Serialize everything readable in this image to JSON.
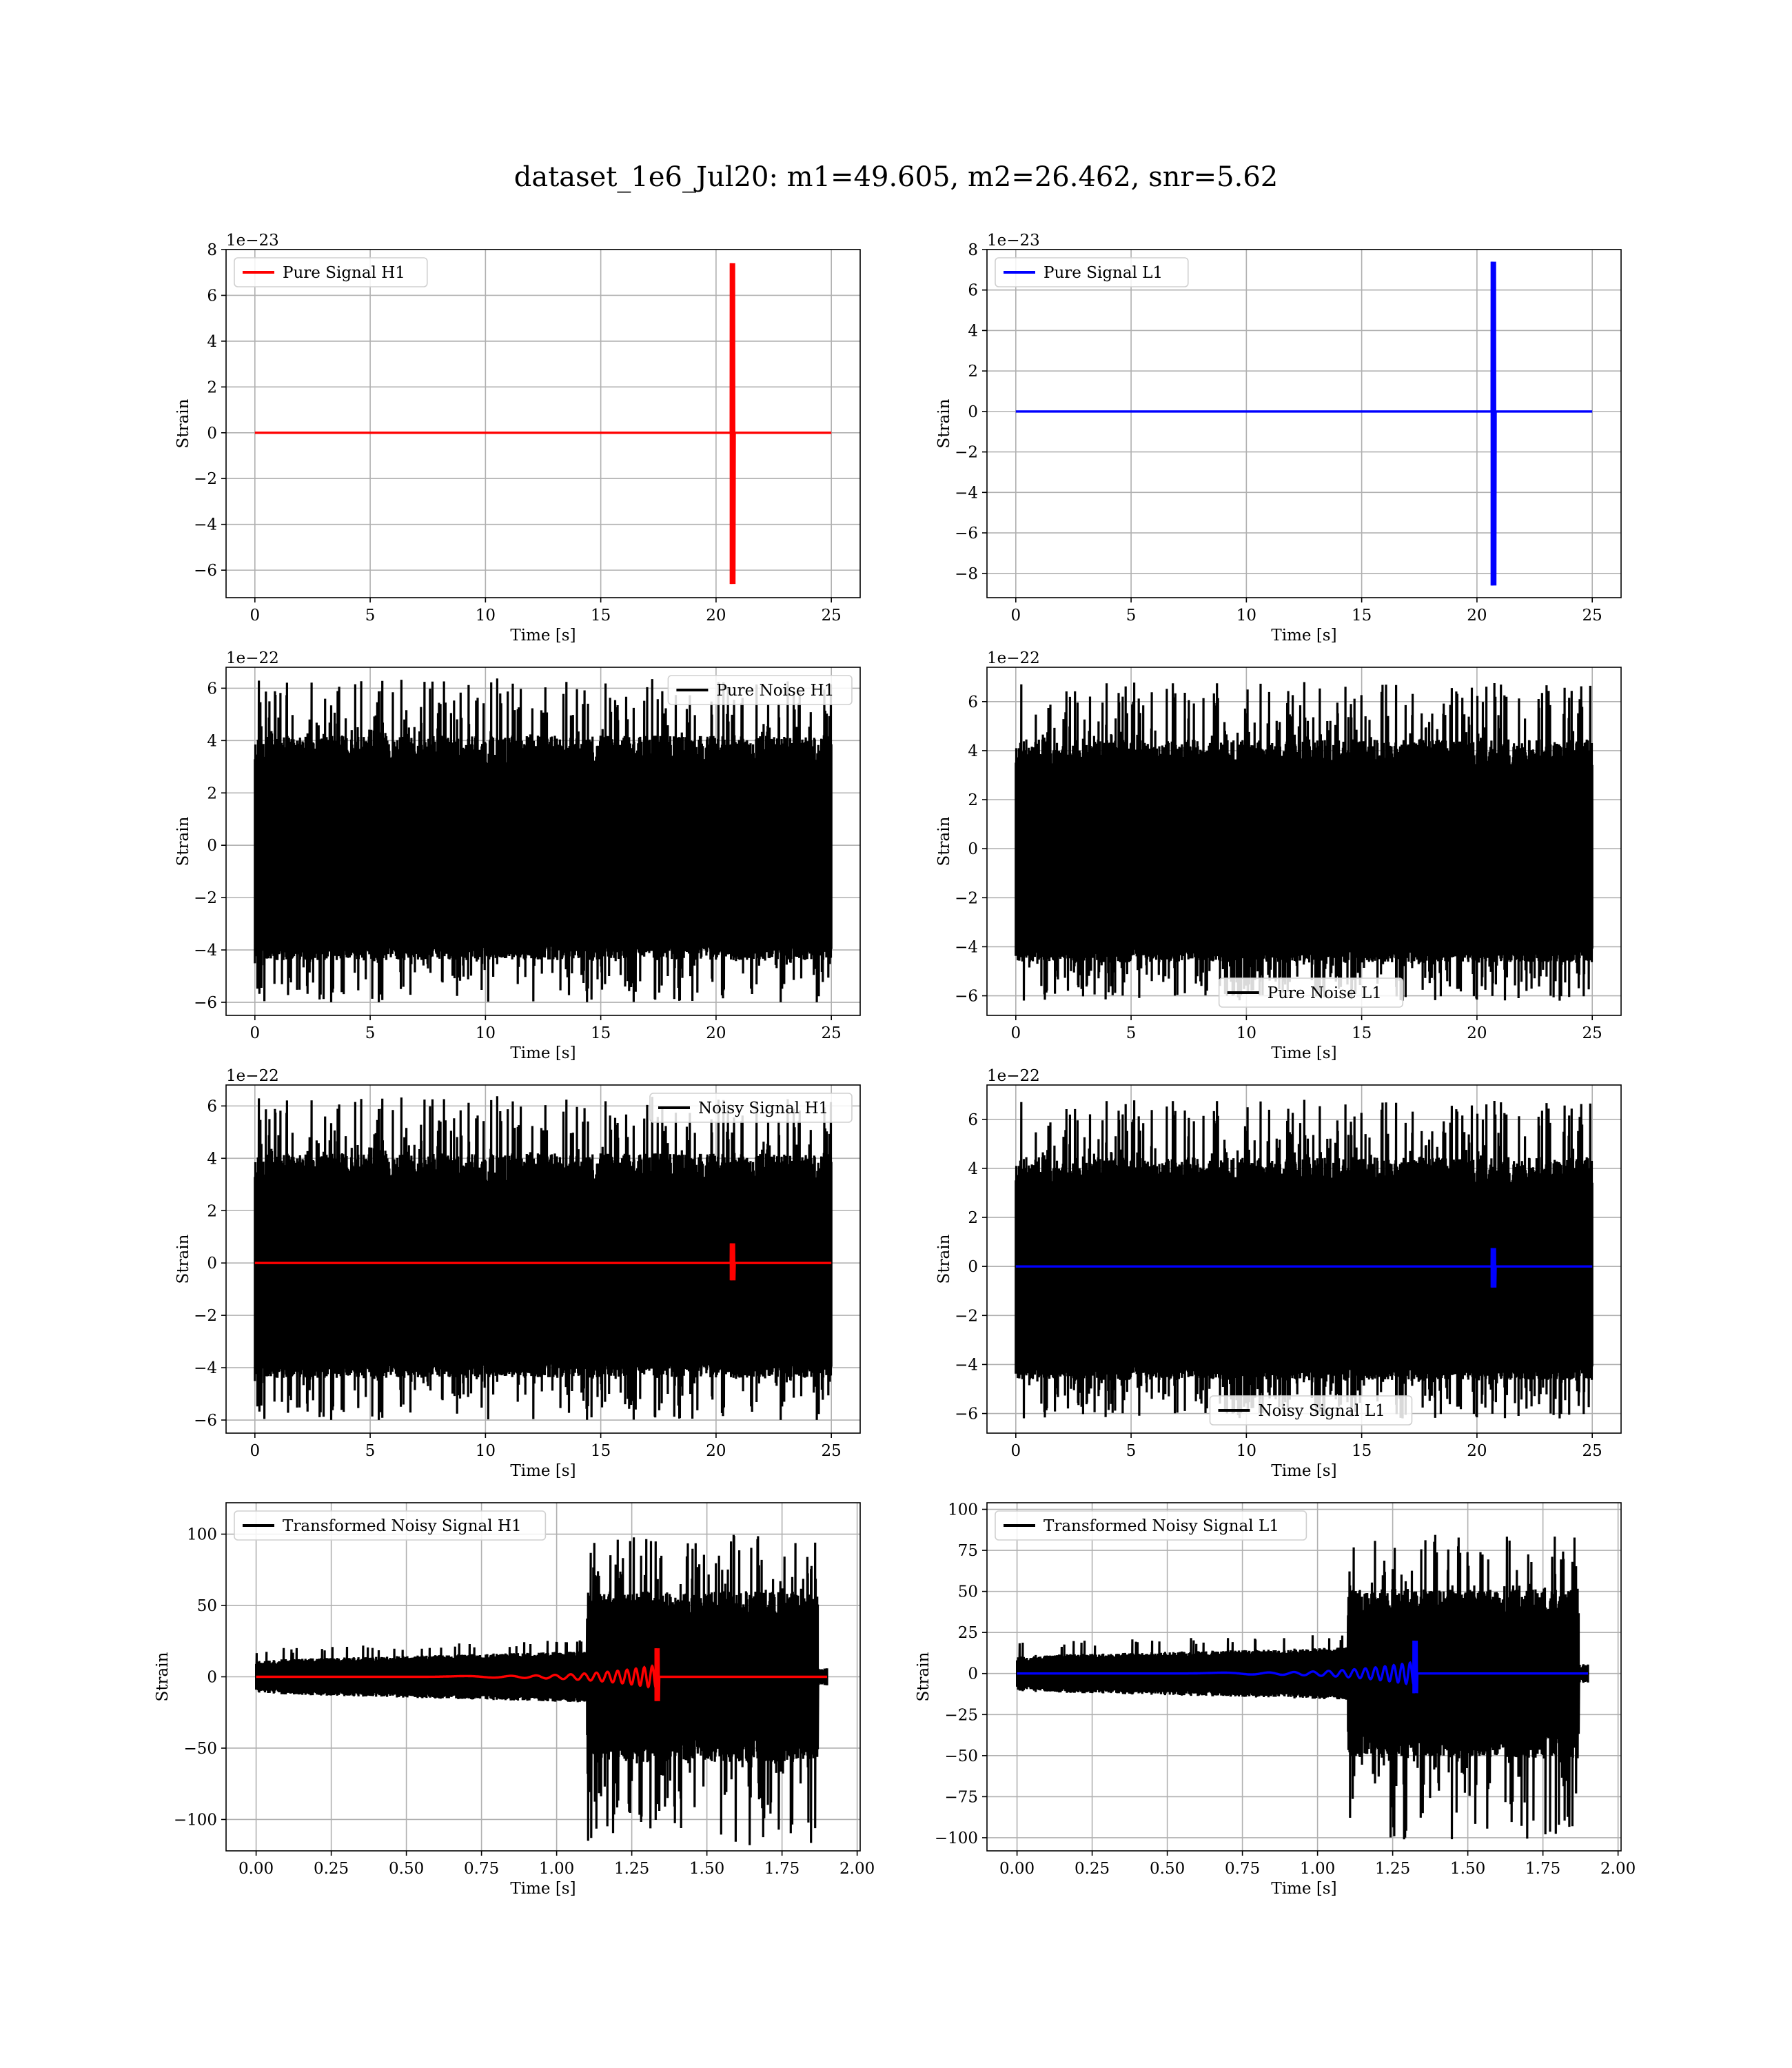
{
  "figure": {
    "title": "dataset_1e6_Jul20: m1=49.605, m2=26.462, snr=5.62"
  },
  "chart_data": [
    {
      "type": "line",
      "row": 0,
      "col": 0,
      "xlabel": "Time [s]",
      "ylabel": "Strain",
      "scale_label": "1e−23",
      "xlim": [
        -1.25,
        26.25
      ],
      "ylim": [
        -7.2,
        8.0
      ],
      "xticks": [
        0,
        5,
        10,
        15,
        20,
        25
      ],
      "xtick_labels": [
        "0",
        "5",
        "10",
        "15",
        "20",
        "25"
      ],
      "yticks": [
        -6,
        -4,
        -2,
        0,
        2,
        4,
        6,
        8
      ],
      "ytick_labels": [
        "−6",
        "−4",
        "−2",
        "0",
        "2",
        "4",
        "6",
        "8"
      ],
      "grid": true,
      "legend_loc": "upper left",
      "series": [
        {
          "name": "Pure Signal H1",
          "kind": "chirp",
          "color": "#ff0000",
          "in_legend": true,
          "t_end": 25,
          "t_merge": 20.65,
          "peak_pos": 7.4,
          "peak_neg": -6.6,
          "env_early": 0.15,
          "env_late": 2.3
        }
      ]
    },
    {
      "type": "line",
      "row": 0,
      "col": 1,
      "xlabel": "Time [s]",
      "ylabel": "Strain",
      "scale_label": "1e−23",
      "xlim": [
        -1.25,
        26.25
      ],
      "ylim": [
        -9.2,
        8.0
      ],
      "xticks": [
        0,
        5,
        10,
        15,
        20,
        25
      ],
      "xtick_labels": [
        "0",
        "5",
        "10",
        "15",
        "20",
        "25"
      ],
      "yticks": [
        -8,
        -6,
        -4,
        -2,
        0,
        2,
        4,
        6,
        8
      ],
      "ytick_labels": [
        "−8",
        "−6",
        "−4",
        "−2",
        "0",
        "2",
        "4",
        "6",
        "8"
      ],
      "grid": true,
      "legend_loc": "upper left",
      "series": [
        {
          "name": "Pure Signal L1",
          "kind": "chirp",
          "color": "#0000ff",
          "in_legend": true,
          "t_end": 25,
          "t_merge": 20.65,
          "peak_pos": 7.4,
          "peak_neg": -8.6,
          "env_early": 0.15,
          "env_late": 2.3
        }
      ]
    },
    {
      "type": "line",
      "row": 1,
      "col": 0,
      "xlabel": "Time [s]",
      "ylabel": "Strain",
      "scale_label": "1e−22",
      "xlim": [
        -1.25,
        26.25
      ],
      "ylim": [
        -6.5,
        6.8
      ],
      "xticks": [
        0,
        5,
        10,
        15,
        20,
        25
      ],
      "xtick_labels": [
        "0",
        "5",
        "10",
        "15",
        "20",
        "25"
      ],
      "yticks": [
        -6,
        -4,
        -2,
        0,
        2,
        4,
        6
      ],
      "ytick_labels": [
        "−6",
        "−4",
        "−2",
        "0",
        "2",
        "4",
        "6"
      ],
      "grid": true,
      "legend_loc": "upper right",
      "series": [
        {
          "name": "Pure Noise H1",
          "kind": "noise",
          "color": "#000000",
          "in_legend": true,
          "t_end": 25,
          "core": 3.0,
          "env_min": -3.7,
          "spike_max": 6.4,
          "spike_min": -6.0,
          "seed": 11
        }
      ]
    },
    {
      "type": "line",
      "row": 1,
      "col": 1,
      "xlabel": "Time [s]",
      "ylabel": "Strain",
      "scale_label": "1e−22",
      "xlim": [
        -1.25,
        26.25
      ],
      "ylim": [
        -6.8,
        7.4
      ],
      "xticks": [
        0,
        5,
        10,
        15,
        20,
        25
      ],
      "xtick_labels": [
        "0",
        "5",
        "10",
        "15",
        "20",
        "25"
      ],
      "yticks": [
        -6,
        -4,
        -2,
        0,
        2,
        4,
        6
      ],
      "ytick_labels": [
        "−6",
        "−4",
        "−2",
        "0",
        "2",
        "4",
        "6"
      ],
      "grid": true,
      "legend_loc": "lower center",
      "series": [
        {
          "name": "Pure Noise L1",
          "kind": "noise",
          "color": "#000000",
          "in_legend": true,
          "t_end": 25,
          "core": 3.2,
          "env_min": -4.0,
          "spike_max": 6.8,
          "spike_min": -6.2,
          "seed": 23
        }
      ]
    },
    {
      "type": "line",
      "row": 2,
      "col": 0,
      "xlabel": "Time [s]",
      "ylabel": "Strain",
      "scale_label": "1e−22",
      "xlim": [
        -1.25,
        26.25
      ],
      "ylim": [
        -6.5,
        6.8
      ],
      "xticks": [
        0,
        5,
        10,
        15,
        20,
        25
      ],
      "xtick_labels": [
        "0",
        "5",
        "10",
        "15",
        "20",
        "25"
      ],
      "yticks": [
        -6,
        -4,
        -2,
        0,
        2,
        4,
        6
      ],
      "ytick_labels": [
        "−6",
        "−4",
        "−2",
        "0",
        "2",
        "4",
        "6"
      ],
      "grid": true,
      "legend_loc": "upper right",
      "series": [
        {
          "name": "Noisy Signal H1",
          "kind": "noise",
          "color": "#000000",
          "in_legend": true,
          "t_end": 25,
          "core": 3.0,
          "env_min": -3.7,
          "spike_max": 6.4,
          "spike_min": -6.0,
          "seed": 11
        },
        {
          "kind": "chirp",
          "color": "#ff0000",
          "in_legend": false,
          "t_end": 25,
          "t_merge": 20.65,
          "peak_pos": 0.75,
          "peak_neg": -0.66,
          "env_early": 0.02,
          "env_late": 0.23
        }
      ]
    },
    {
      "type": "line",
      "row": 2,
      "col": 1,
      "xlabel": "Time [s]",
      "ylabel": "Strain",
      "scale_label": "1e−22",
      "xlim": [
        -1.25,
        26.25
      ],
      "ylim": [
        -6.8,
        7.4
      ],
      "xticks": [
        0,
        5,
        10,
        15,
        20,
        25
      ],
      "xtick_labels": [
        "0",
        "5",
        "10",
        "15",
        "20",
        "25"
      ],
      "yticks": [
        -6,
        -4,
        -2,
        0,
        2,
        4,
        6
      ],
      "ytick_labels": [
        "−6",
        "−4",
        "−2",
        "0",
        "2",
        "4",
        "6"
      ],
      "grid": true,
      "legend_loc": "lower center",
      "series": [
        {
          "name": "Noisy Signal L1",
          "kind": "noise",
          "color": "#000000",
          "in_legend": true,
          "t_end": 25,
          "core": 3.2,
          "env_min": -4.0,
          "spike_max": 6.8,
          "spike_min": -6.2,
          "seed": 23
        },
        {
          "kind": "chirp",
          "color": "#0000ff",
          "in_legend": false,
          "t_end": 25,
          "t_merge": 20.65,
          "peak_pos": 0.75,
          "peak_neg": -0.86,
          "env_early": 0.02,
          "env_late": 0.23
        }
      ]
    },
    {
      "type": "line",
      "row": 3,
      "col": 0,
      "xlabel": "Time [s]",
      "ylabel": "Strain",
      "scale_label": "",
      "xlim": [
        -0.1,
        2.01
      ],
      "ylim": [
        -122,
        122
      ],
      "xticks": [
        0,
        0.25,
        0.5,
        0.75,
        1.0,
        1.25,
        1.5,
        1.75,
        2.0
      ],
      "xtick_labels": [
        "0.00",
        "0.25",
        "0.50",
        "0.75",
        "1.00",
        "1.25",
        "1.50",
        "1.75",
        "2.00"
      ],
      "yticks": [
        -100,
        -50,
        0,
        50,
        100
      ],
      "ytick_labels": [
        "−100",
        "−50",
        "0",
        "50",
        "100"
      ],
      "grid": true,
      "legend_loc": "upper left",
      "series": [
        {
          "name": "Transformed Noisy Signal H1",
          "kind": "whitened",
          "color": "#000000",
          "in_legend": true,
          "t_end": 1.9,
          "t_jump": 1.1,
          "t_stop": 1.87,
          "pre_amp": 8,
          "pre_env_max": 14,
          "post_amp": 52,
          "spike_max": 100,
          "spike_min": -118,
          "seed": 37
        },
        {
          "kind": "chirp",
          "color": "#ff0000",
          "in_legend": false,
          "t_end": 1.9,
          "t_merge": 1.33,
          "peak_pos": 20,
          "peak_neg": -17,
          "env_early": 0.5,
          "env_late": 8,
          "osc": "wide"
        }
      ]
    },
    {
      "type": "line",
      "row": 3,
      "col": 1,
      "xlabel": "Time [s]",
      "ylabel": "Strain",
      "scale_label": "",
      "xlim": [
        -0.1,
        2.01
      ],
      "ylim": [
        -108,
        104
      ],
      "xticks": [
        0,
        0.25,
        0.5,
        0.75,
        1.0,
        1.25,
        1.5,
        1.75,
        2.0
      ],
      "xtick_labels": [
        "0.00",
        "0.25",
        "0.50",
        "0.75",
        "1.00",
        "1.25",
        "1.50",
        "1.75",
        "2.00"
      ],
      "yticks": [
        -100,
        -75,
        -50,
        -25,
        0,
        25,
        50,
        75,
        100
      ],
      "ytick_labels": [
        "−100",
        "−75",
        "−50",
        "−25",
        "0",
        "25",
        "50",
        "75",
        "100"
      ],
      "grid": true,
      "legend_loc": "upper left",
      "series": [
        {
          "name": "Transformed Noisy Signal L1",
          "kind": "whitened",
          "color": "#000000",
          "in_legend": true,
          "t_end": 1.9,
          "t_jump": 1.1,
          "t_stop": 1.87,
          "pre_amp": 7,
          "pre_env_max": 12,
          "post_amp": 45,
          "spike_max": 85,
          "spike_min": -102,
          "seed": 53
        },
        {
          "kind": "chirp",
          "color": "#0000ff",
          "in_legend": false,
          "t_end": 1.9,
          "t_merge": 1.32,
          "peak_pos": 20,
          "peak_neg": -12,
          "env_early": 0.5,
          "env_late": 7,
          "osc": "wide"
        }
      ]
    }
  ]
}
